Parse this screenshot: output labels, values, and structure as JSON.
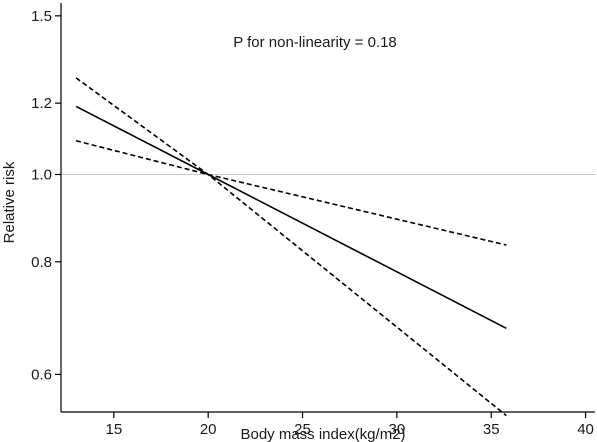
{
  "chart_data": {
    "type": "line",
    "title": "",
    "xlabel": "Body mass index(kg/m2)",
    "ylabel": "Relative risk",
    "annotation": "P for non-linearity = 0.18",
    "xlim": [
      12.2,
      40.5
    ],
    "ylim": [
      0.545,
      1.55
    ],
    "y_scale": "log",
    "x_ticks": [
      15,
      20,
      25,
      30,
      35,
      40
    ],
    "x_tick_labels": [
      "15",
      "20",
      "25",
      "30",
      "35",
      "40"
    ],
    "y_ticks": [
      0.6,
      0.8,
      1.0,
      1.2,
      1.5
    ],
    "y_tick_labels": [
      "0.6",
      "0.8",
      "1.0",
      "1.2",
      "1.5"
    ],
    "reference_line": {
      "y": 1.0,
      "color": "#c8c8c8"
    },
    "grid": false,
    "legend": "none",
    "series": [
      {
        "style": "solid",
        "color": "#000000",
        "x": [
          13,
          20,
          35.8
        ],
        "y": [
          1.19,
          1.0,
          0.675
        ]
      },
      {
        "style": "dashed",
        "color": "#000000",
        "x": [
          13,
          20,
          35.8
        ],
        "y": [
          1.28,
          1.0,
          0.54
        ]
      },
      {
        "style": "dashed",
        "color": "#000000",
        "x": [
          13,
          20,
          35.8
        ],
        "y": [
          1.09,
          1.0,
          0.835
        ]
      }
    ]
  }
}
